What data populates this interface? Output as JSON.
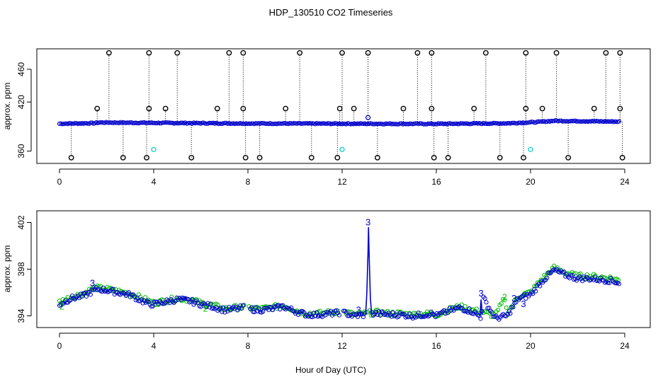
{
  "title": "HDP_130510  CO2 Timeseries",
  "xlabel": "Hour of Day (UTC)",
  "colors": {
    "primary": "#0000cc",
    "secondary": "#00bb00",
    "outlier": "#000000",
    "cyan": "#00cccc"
  },
  "chart_data": [
    {
      "type": "scatter",
      "ylabel": "approx. ppm",
      "xlim": [
        0,
        24
      ],
      "ylim": [
        345,
        485
      ],
      "xticks": [
        0,
        4,
        8,
        12,
        16,
        20,
        24
      ],
      "yticks": [
        360,
        420,
        460
      ],
      "baseline_segments": [
        {
          "x": [
            0.0,
            1.5,
            1.7,
            4.0,
            8.0,
            12.0,
            16.0,
            19.0,
            20.3,
            21.0,
            23.8
          ],
          "y": [
            393.5,
            394.2,
            395.0,
            394.5,
            393.8,
            393.5,
            393.3,
            394.0,
            395.5,
            397.0,
            396.0
          ]
        }
      ],
      "high_outliers": [
        2.1,
        3.8,
        5.0,
        7.2,
        7.8,
        10.2,
        12.0,
        13.1,
        15.2,
        15.8,
        18.1,
        19.8,
        21.1,
        23.2,
        23.8
      ],
      "high_value": 480,
      "mid_outliers": [
        1.6,
        3.8,
        4.5,
        6.7,
        7.8,
        9.6,
        11.9,
        12.5,
        14.6,
        15.8,
        17.6,
        19.8,
        20.5,
        22.7,
        23.8
      ],
      "mid_value": 412,
      "low_outliers": [
        0.5,
        2.7,
        3.7,
        5.6,
        7.9,
        8.5,
        10.7,
        11.8,
        13.5,
        15.9,
        16.5,
        18.7,
        19.7,
        21.6,
        23.9
      ],
      "low_value": 352,
      "cyan_points": [
        {
          "x": 4.0,
          "y": 362
        },
        {
          "x": 12.0,
          "y": 362
        },
        {
          "x": 20.0,
          "y": 362
        }
      ],
      "spike_point": {
        "x": 13.1,
        "y": 401
      }
    },
    {
      "type": "scatter",
      "ylabel": "approx. ppm",
      "xlim": [
        0,
        24
      ],
      "ylim": [
        393,
        403
      ],
      "xticks": [
        0,
        4,
        8,
        12,
        16,
        20,
        24
      ],
      "yticks": [
        394,
        398,
        402
      ],
      "series": [
        {
          "x": [
            0.0,
            0.5,
            1.0,
            1.3,
            1.6,
            2.0,
            2.5,
            3.0,
            3.5,
            3.8,
            4.0,
            4.5,
            5.0,
            5.5,
            6.0,
            6.5,
            7.0,
            7.5,
            7.8,
            8.0,
            8.5,
            9.0,
            9.5,
            10.0,
            10.5,
            11.0,
            11.5,
            12.0,
            12.5,
            13.0,
            13.1,
            13.2,
            13.5,
            14.0,
            14.5,
            15.0,
            15.5,
            15.8,
            16.0,
            16.5,
            17.0,
            17.5,
            17.9,
            18.0,
            18.5,
            19.0,
            19.5,
            20.0,
            20.5,
            21.0,
            21.5,
            22.0,
            22.5,
            23.0,
            23.5,
            23.8
          ],
          "y": [
            395.0,
            395.5,
            395.7,
            396.0,
            396.3,
            396.2,
            396.0,
            395.8,
            395.3,
            395.0,
            395.0,
            395.2,
            395.4,
            395.3,
            395.0,
            394.8,
            394.5,
            394.6,
            394.7,
            394.6,
            394.5,
            394.6,
            394.8,
            394.4,
            394.1,
            394.1,
            394.2,
            394.3,
            394.0,
            394.1,
            401.5,
            394.2,
            394.2,
            394.1,
            394.1,
            394.0,
            394.1,
            394.2,
            394.0,
            394.4,
            394.7,
            394.4,
            393.9,
            395.5,
            393.8,
            394.0,
            395.5,
            395.8,
            397.0,
            397.9,
            397.5,
            397.2,
            397.2,
            397.1,
            397.0,
            396.8
          ]
        },
        {
          "x": [
            0.0,
            0.5,
            1.0,
            1.5,
            2.0,
            2.5,
            3.0,
            3.5,
            4.0,
            4.5,
            5.0,
            5.5,
            6.0,
            6.5,
            7.0,
            7.5,
            8.0,
            8.5,
            9.0,
            9.5,
            10.0,
            10.5,
            11.0,
            11.5,
            12.0,
            12.5,
            13.0,
            13.5,
            14.0,
            14.5,
            15.0,
            15.5,
            16.0,
            16.5,
            17.0,
            17.5,
            18.0,
            18.5,
            18.9,
            19.0,
            19.5,
            20.0,
            20.5,
            21.0,
            21.5,
            22.0,
            22.5,
            23.0,
            23.5,
            23.8
          ],
          "y": [
            395.2,
            395.6,
            395.9,
            396.4,
            396.3,
            396.1,
            395.9,
            395.5,
            395.1,
            395.3,
            395.5,
            395.4,
            395.1,
            394.9,
            394.6,
            394.7,
            394.7,
            394.6,
            394.7,
            394.9,
            394.5,
            394.2,
            394.2,
            394.3,
            394.4,
            394.1,
            394.2,
            394.3,
            394.2,
            394.2,
            394.1,
            394.2,
            394.1,
            394.5,
            394.8,
            394.5,
            394.3,
            394.0,
            395.5,
            394.2,
            395.7,
            396.0,
            397.2,
            398.1,
            397.7,
            397.4,
            397.4,
            397.3,
            397.2,
            397.0
          ]
        }
      ],
      "labels_3": [
        {
          "x": 1.4,
          "y": 396.8
        },
        {
          "x": 13.1,
          "y": 402.0
        },
        {
          "x": 12.7,
          "y": 394.5
        },
        {
          "x": 17.9,
          "y": 395.9
        },
        {
          "x": 19.7,
          "y": 395.0
        },
        {
          "x": 19.3,
          "y": 395.5
        }
      ],
      "labels_2": [
        {
          "x": 0.1,
          "y": 394.8
        },
        {
          "x": 18.9,
          "y": 395.6
        },
        {
          "x": 6.2,
          "y": 394.6
        }
      ]
    }
  ]
}
